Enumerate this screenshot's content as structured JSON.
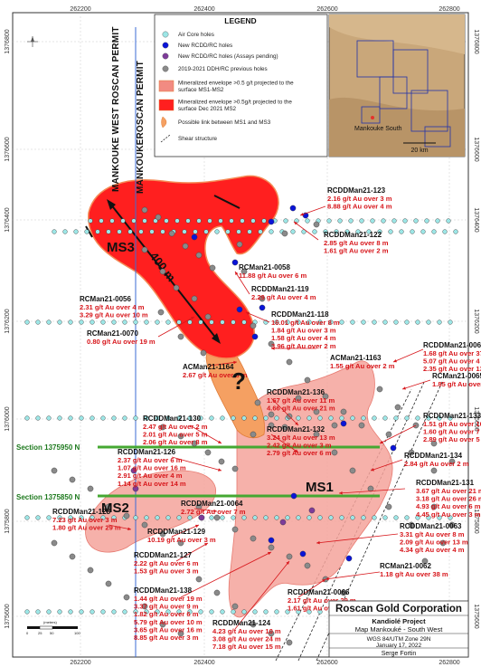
{
  "map": {
    "easting_ticks": [
      "262200",
      "262400",
      "262600",
      "262800"
    ],
    "northing_ticks": [
      "1376800",
      "1376600",
      "1376400",
      "1376200",
      "1376000",
      "1375800",
      "1375600"
    ],
    "north_arrow": "north-arrow-icon",
    "permits": {
      "west": "MANKOUKE WEST ROSCAN PERMIT",
      "east": "MANKOUKEROSCAN PERMIT"
    },
    "zones": [
      "MS3",
      "MS1",
      "MS2"
    ],
    "question_mark": "?",
    "link_length_label": "400 m",
    "sections": [
      "Section 1375950 N",
      "Section 1375850 N"
    ],
    "scale_bar_label": "(meters)",
    "scale_bar_ticks": [
      "0",
      "25",
      "50",
      "100"
    ]
  },
  "legend": {
    "title": "LEGEND",
    "items": [
      {
        "label": "Air Core holes",
        "color": "#9ce6e6"
      },
      {
        "label": "New RCDD/RC holes",
        "color": "#0a14d8"
      },
      {
        "label": "New RCDD/RC holes (Assays pending)",
        "color": "#7e3c9a"
      },
      {
        "label": "2019-2021 DDH/RC previous holes",
        "color": "#8a8a8a"
      },
      {
        "label": "Mineralized envelope >0.5 g/t projected to the surface MS1-MS2",
        "color": "#f28b82"
      },
      {
        "label": "Mineralized envelope >0.5g/t projected to the surface Dec 2021 MS2",
        "color": "#ff1f1f"
      },
      {
        "label": "Possible link between MS1 and MS3",
        "color": "#f5a062"
      },
      {
        "label": "Shear structure",
        "color": "#222222"
      }
    ]
  },
  "inset": {
    "label": "Mankouke South",
    "scale": "20 km"
  },
  "intercepts": [
    {
      "hole": "RCDDMan21-123",
      "lines": [
        "2.16 g/t Au over 3 m",
        "8.88 g/t Au over 4 m"
      ]
    },
    {
      "hole": "RCDDMan21-122",
      "lines": [
        "2.85 g/t Au over 8 m",
        "1.61 g/t Au over 2 m"
      ]
    },
    {
      "hole": "RCMan21-0058",
      "lines": [
        "11.88 g/t Au over 6 m"
      ]
    },
    {
      "hole": "RCDDMan21-119",
      "lines": [
        "2.29 g/t Au over 4 m"
      ]
    },
    {
      "hole": "RCMan21-0056",
      "lines": [
        "2.31 g/t Au over 4 m",
        "3.29 g/t Au over 10 m"
      ]
    },
    {
      "hole": "RCMan21-0070",
      "lines": [
        "0.80 g/t Au over 19 m"
      ]
    },
    {
      "hole": "RCDDMan21-118",
      "lines": [
        "16.01 g/t Au over 8 m",
        "1.84 g/t Au over 3 m",
        "1.58 g/t Au over 4 m",
        "3.96 g/t Au over 2 m"
      ]
    },
    {
      "hole": "ACMan21-1164",
      "lines": [
        "2.67 g/t Au over 8 m"
      ]
    },
    {
      "hole": "ACMan21-1163",
      "lines": [
        "1.55 g/t Au over 2 m"
      ]
    },
    {
      "hole": "RCDDMan21-0067",
      "lines": [
        "1.68 g/t Au over 37 m",
        "5.07 g/t Au over 4 m",
        "2.35 g/t Au over 13 m"
      ]
    },
    {
      "hole": "RCMan21-0065",
      "lines": [
        "1.85 g/t Au over 4 m"
      ]
    },
    {
      "hole": "RCDDMan21-136",
      "lines": [
        "1.67 g/t Au over 11 m",
        "4.66 g/t Au over 21 m"
      ]
    },
    {
      "hole": "RCDDMan21-130",
      "lines": [
        "2.47 g/t Au over 2 m",
        "2.01 g/t Au over 5 m",
        "2.06 g/t Au over 8 m"
      ]
    },
    {
      "hole": "RCDDMan21-132",
      "lines": [
        "3.24 g/t Au over 13 m",
        "2.42 g/t Au over 3 m",
        "2.79 g/t Au over 6 m"
      ]
    },
    {
      "hole": "RCDDMan21-133",
      "lines": [
        "1.51 g/t Au over 10 m",
        "1.60 g/t Au over 7 m",
        "2.89 g/t Au over 5 m"
      ]
    },
    {
      "hole": "RCDDMan21-134",
      "lines": [
        "2.84 g/t Au over 2 m"
      ]
    },
    {
      "hole": "RCDDMan21-126",
      "lines": [
        "2.37 g/t Au over 6 m",
        "1.07 g/t Au over 16 m",
        "2.91 g/t Au over 4 m",
        "1.14 g/t Au over 14 m"
      ]
    },
    {
      "hole": "RCDDMan21-131",
      "lines": [
        "3.67 g/t Au over 21 m",
        "3.18 g/t Au over 26 m",
        "4.93 g/t Au over 6 m",
        "4.45 g/t Au over 3 m"
      ]
    },
    {
      "hole": "RCDDMan21-0064",
      "lines": [
        "2.72 g/t Au over 7 m"
      ]
    },
    {
      "hole": "RCDDMan21-128",
      "lines": [
        "7.23 g/t Au over 3 m",
        "1.80 g/t Au over 29 m"
      ]
    },
    {
      "hole": "RCDDMan21-129",
      "lines": [
        "10.19 g/t Au over 3 m"
      ]
    },
    {
      "hole": "RCDDMan21-0063",
      "lines": [
        "3.31 g/t Au over 8 m",
        "2.09 g/t Au over 13 m",
        "4.34 g/t Au over 4 m"
      ]
    },
    {
      "hole": "RCDDMan21-127",
      "lines": [
        "2.22 g/t Au over 6 m",
        "1.53 g/t Au over 3 m"
      ]
    },
    {
      "hole": "RCMan21-0062",
      "lines": [
        "1.18 g/t Au over 38 m"
      ]
    },
    {
      "hole": "RCDDMan21-138",
      "lines": [
        "1.44 g/t Au over 19 m",
        "3.37 g/t Au over 9 m",
        "1.82 g/t Au over 6 m",
        "5.79 g/t Au over 10 m",
        "3.65 g/t Au over 16 m",
        "8.85 g/t Au over 3 m"
      ]
    },
    {
      "hole": "RCDDMan21-0066",
      "lines": [
        "2.17 g/t Au over 29 m",
        "1.61 g/t Au over 5 m"
      ]
    },
    {
      "hole": "RCDDMan21-124",
      "lines": [
        "4.23 g/t Au over 10 m",
        "3.08 g/t Au over 24 m",
        "7.18 g/t Au over 15 m"
      ]
    }
  ],
  "title_block": {
    "company": "Roscan Gold Corporation",
    "project": "Kandiolé Project",
    "map_name": "Map Mankouké - South West",
    "projection": "WGS 84/UTM Zone 29N",
    "date": "January 17, 2022",
    "author": "Serge Fortin"
  }
}
